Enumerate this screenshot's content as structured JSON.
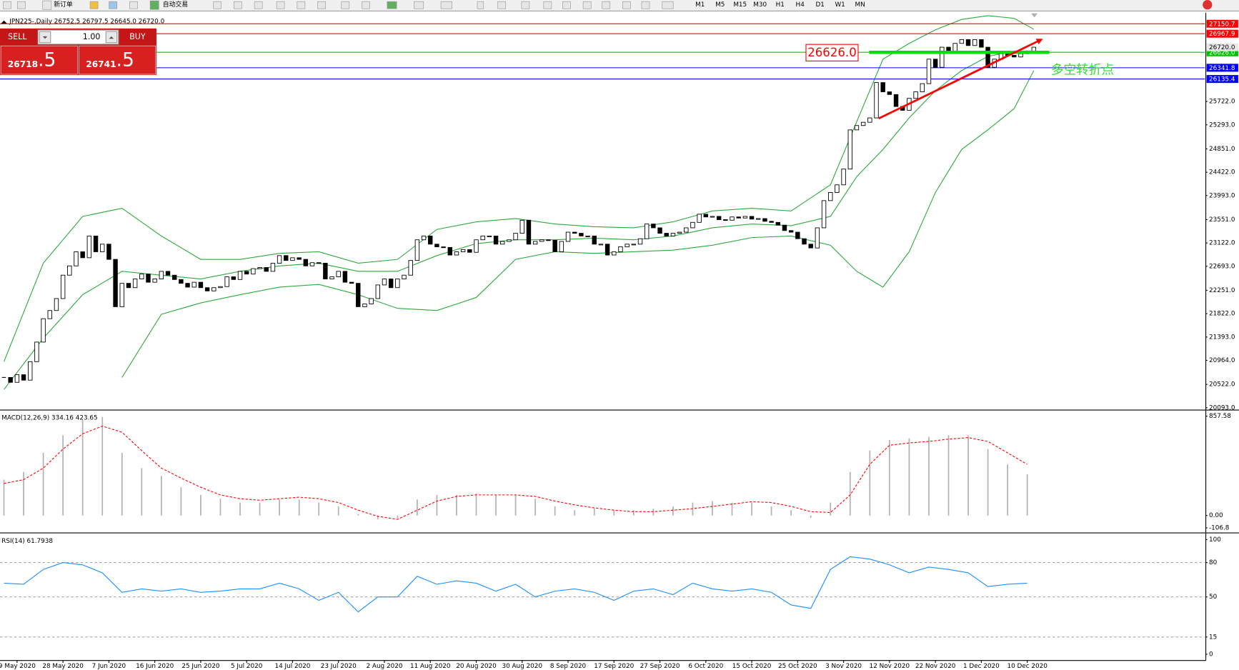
{
  "toolbar": {
    "new_order": "新订单",
    "auto_trading": "自动交易",
    "timeframes": [
      "M1",
      "M5",
      "M15",
      "M30",
      "H1",
      "H4",
      "D1",
      "W1",
      "MN"
    ]
  },
  "trade_panel": {
    "sell": "SELL",
    "lot": "1.00",
    "buy": "BUY",
    "bid_main": "26718",
    "bid_frac": ".5",
    "ask_main": "26741",
    "ask_frac": ".5"
  },
  "chart_data": [
    {
      "type": "candlestick",
      "title": "JPN225-,Daily  26752.5 26797.5 26645.0 26720.0",
      "xlim": [
        -0.6,
        183.1
      ],
      "ylim": [
        20065,
        27326
      ],
      "yticks": [
        {
          "value": 25722,
          "label": "25722.0"
        },
        {
          "value": 25293,
          "label": "25293.0"
        },
        {
          "value": 24851,
          "label": "24851.0"
        },
        {
          "value": 24422,
          "label": "24422.0"
        },
        {
          "value": 23993,
          "label": "23993.0"
        },
        {
          "value": 23551,
          "label": "23551.0"
        },
        {
          "value": 23122,
          "label": "23122.0"
        },
        {
          "value": 22693,
          "label": "22693.0"
        },
        {
          "value": 22251,
          "label": "22251.0"
        },
        {
          "value": 21822,
          "label": "21822.0"
        },
        {
          "value": 21393,
          "label": "21393.0"
        },
        {
          "value": 20964,
          "label": "20964.0"
        },
        {
          "value": 20522,
          "label": "20522.0"
        },
        {
          "value": 20093,
          "label": "20093.0"
        }
      ],
      "closes": [
        20650,
        20560,
        20700,
        20600,
        20940,
        21300,
        21730,
        21880,
        22100,
        22530,
        22700,
        22960,
        22850,
        23250,
        22960,
        23100,
        22820,
        21950,
        22380,
        22300,
        22460,
        22550,
        22400,
        22460,
        22600,
        22530,
        22450,
        22380,
        22310,
        22400,
        22300,
        22240,
        22300,
        22320,
        22500,
        22450,
        22600,
        22550,
        22650,
        22670,
        22600,
        22750,
        22890,
        22800,
        22850,
        22820,
        22700,
        22760,
        22750,
        22460,
        22500,
        22600,
        22400,
        22380,
        21950,
        22000,
        22100,
        22350,
        22460,
        22300,
        22460,
        22530,
        22800,
        23180,
        23250,
        23100,
        23050,
        23040,
        22900,
        22960,
        23000,
        22950,
        23180,
        23250,
        23250,
        23100,
        23150,
        23180,
        23300,
        23540,
        23100,
        23150,
        23180,
        23170,
        22960,
        23150,
        23320,
        23300,
        23250,
        23250,
        23100,
        23100,
        22900,
        22960,
        23050,
        23100,
        23100,
        23200,
        23470,
        23400,
        23300,
        23250,
        23300,
        23320,
        23400,
        23500,
        23650,
        23600,
        23610,
        23550,
        23540,
        23600,
        23580,
        23610,
        23560,
        23570,
        23520,
        23500,
        23450,
        23350,
        23320,
        23200,
        23100,
        23030,
        23400,
        23900,
        24050,
        24190,
        24480,
        25200,
        25280,
        25340,
        25420,
        26070,
        25900,
        25850,
        25630,
        25560,
        25780,
        25900,
        26050,
        26500,
        26350,
        26720,
        26650,
        26790,
        26860,
        26750,
        26860,
        26720,
        26350,
        26500,
        26600,
        26570,
        26540,
        26600,
        26650,
        26720
      ],
      "bands": {
        "color": "#2eaa3c",
        "x": [
          0,
          6,
          12,
          18,
          24,
          30,
          36,
          42,
          48,
          54,
          60,
          66,
          72,
          78,
          84,
          90,
          96,
          102,
          108,
          114,
          120,
          126,
          130,
          134,
          138,
          142,
          146,
          150,
          154,
          157
        ],
        "upper": [
          20940,
          22750,
          23610,
          23760,
          23250,
          22820,
          22820,
          22930,
          22960,
          22750,
          22820,
          23370,
          23510,
          23570,
          23470,
          23420,
          23400,
          23510,
          23710,
          23760,
          23710,
          24190,
          25350,
          26500,
          26790,
          27040,
          27230,
          27300,
          27250,
          27050
        ],
        "middle": [
          20430,
          21370,
          22170,
          22600,
          22530,
          22460,
          22600,
          22700,
          22750,
          22600,
          22600,
          22890,
          23110,
          23180,
          23180,
          23210,
          23180,
          23250,
          23400,
          23470,
          23440,
          23610,
          24340,
          24840,
          25420,
          25920,
          26290,
          26550,
          26650,
          26650
        ],
        "lower": [
          null,
          null,
          null,
          20650,
          21810,
          22020,
          22170,
          22310,
          22360,
          22170,
          21920,
          21880,
          22120,
          22820,
          22960,
          22930,
          22960,
          22990,
          23080,
          23220,
          23250,
          23080,
          22600,
          22310,
          22960,
          24050,
          24840,
          25200,
          25590,
          26290
        ]
      },
      "price_lines": [
        {
          "value": 27150.7,
          "label": "27150.7",
          "color": "#ff0000"
        },
        {
          "value": 26967.9,
          "label": "26967.9",
          "color": "#ff0000"
        },
        {
          "value": 26626,
          "label": "26626.0",
          "color": "#00c000"
        },
        {
          "value": 26341.8,
          "label": "26341.8",
          "color": "#0000ff"
        },
        {
          "value": 26135.4,
          "label": "26135.4",
          "color": "#0000ff"
        }
      ],
      "current_price": {
        "value": 26720,
        "label": "26720.0"
      },
      "annotation": {
        "value": 26626,
        "label": "26626.0",
        "note": "多空转折点"
      }
    },
    {
      "type": "macd",
      "title": "MACD(12,26,9) 334.16 423.65",
      "xlim": [
        -0.6,
        183.1
      ],
      "ylim": [
        -140,
        904
      ],
      "yticks": [
        857.58,
        {
          "value": 0,
          "label": "0.00"
        },
        -106.8
      ],
      "x": [
        0,
        3,
        6,
        9,
        12,
        15,
        18,
        21,
        24,
        27,
        30,
        33,
        36,
        39,
        42,
        45,
        48,
        51,
        54,
        57,
        60,
        63,
        66,
        69,
        72,
        75,
        78,
        81,
        84,
        87,
        90,
        93,
        96,
        99,
        102,
        105,
        108,
        111,
        114,
        117,
        120,
        123,
        126,
        129,
        132,
        135,
        138,
        141,
        144,
        147,
        150,
        153,
        156
      ],
      "histogram": [
        310,
        376,
        541,
        693,
        825,
        851,
        541,
        409,
        343,
        244,
        178,
        145,
        112,
        112,
        139,
        139,
        112,
        79,
        13,
        -33,
        -20,
        139,
        178,
        178,
        191,
        178,
        178,
        145,
        79,
        46,
        59,
        46,
        46,
        59,
        79,
        112,
        125,
        112,
        112,
        79,
        46,
        -20,
        112,
        376,
        561,
        653,
        667,
        680,
        693,
        693,
        574,
        442,
        356
      ],
      "signal": [
        277,
        310,
        409,
        574,
        706,
        772,
        719,
        561,
        409,
        323,
        244,
        178,
        145,
        132,
        145,
        158,
        145,
        112,
        46,
        -7,
        -33,
        46,
        125,
        165,
        178,
        178,
        178,
        165,
        125,
        92,
        66,
        46,
        33,
        33,
        46,
        59,
        79,
        99,
        119,
        112,
        79,
        33,
        26,
        178,
        442,
        607,
        627,
        640,
        660,
        673,
        640,
        541,
        442
      ],
      "histogram_color": "#b4b4b4",
      "signal_color": "#ff0000"
    },
    {
      "type": "line",
      "title": "RSI(14) 61.7938",
      "xlim": [
        -0.6,
        183.1
      ],
      "ylim": [
        -4.8,
        104.8
      ],
      "yticks": [
        100,
        80,
        50,
        15,
        0
      ],
      "levels": [
        80,
        50,
        15
      ],
      "x": [
        0,
        3,
        6,
        9,
        12,
        15,
        18,
        21,
        24,
        27,
        30,
        33,
        36,
        39,
        42,
        45,
        48,
        51,
        54,
        57,
        60,
        63,
        66,
        69,
        72,
        75,
        78,
        81,
        84,
        87,
        90,
        93,
        96,
        99,
        102,
        105,
        108,
        111,
        114,
        117,
        120,
        123,
        126,
        129,
        132,
        135,
        138,
        141,
        144,
        147,
        150,
        153,
        156
      ],
      "values": [
        62,
        61,
        74,
        80,
        78,
        71,
        54,
        57,
        55,
        57,
        54,
        55,
        57,
        57,
        62,
        57,
        47,
        54,
        37,
        50,
        50,
        68,
        61,
        64,
        62,
        55,
        61,
        50,
        55,
        57,
        54,
        47,
        55,
        57,
        52,
        62,
        57,
        55,
        57,
        54,
        43,
        40,
        74,
        85,
        83,
        78,
        71,
        76,
        74,
        71,
        59,
        61,
        62
      ],
      "color": "#1e8fff",
      "xticks": [
        {
          "value": 2,
          "label": "9 May 2020"
        },
        {
          "value": 9,
          "label": "28 May 2020"
        },
        {
          "value": 16,
          "label": "7 Jun 2020"
        },
        {
          "value": 23,
          "label": "16 Jun 2020"
        },
        {
          "value": 30,
          "label": "25 Jun 2020"
        },
        {
          "value": 37,
          "label": "5 Jul 2020"
        },
        {
          "value": 44,
          "label": "14 Jul 2020"
        },
        {
          "value": 51,
          "label": "23 Jul 2020"
        },
        {
          "value": 58,
          "label": "2 Aug 2020"
        },
        {
          "value": 65,
          "label": "11 Aug 2020"
        },
        {
          "value": 72,
          "label": "20 Aug 2020"
        },
        {
          "value": 79,
          "label": "30 Aug 2020"
        },
        {
          "value": 86,
          "label": "8 Sep 2020"
        },
        {
          "value": 93,
          "label": "17 Sep 2020"
        },
        {
          "value": 100,
          "label": "27 Sep 2020"
        },
        {
          "value": 107,
          "label": "6 Oct 2020"
        },
        {
          "value": 114,
          "label": "15 Oct 2020"
        },
        {
          "value": 121,
          "label": "25 Oct 2020"
        },
        {
          "value": 128,
          "label": "3 Nov 2020"
        },
        {
          "value": 135,
          "label": "12 Nov 2020"
        },
        {
          "value": 142,
          "label": "22 Nov 2020"
        },
        {
          "value": 149,
          "label": "1 Dec 2020"
        },
        {
          "value": 156,
          "label": "10 Dec 2020"
        }
      ]
    }
  ]
}
